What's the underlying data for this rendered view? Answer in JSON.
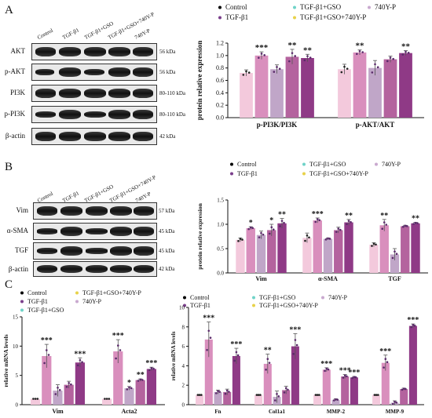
{
  "panels": {
    "A": {
      "letter": "A",
      "lanes": [
        "Control",
        "TGF-β1",
        "TGF-β1+GSO",
        "TGF-β1+GSO+740Y-P",
        "740Y-P"
      ],
      "rows": [
        {
          "name": "AKT",
          "kda": "56 kDa"
        },
        {
          "name": "p-AKT",
          "kda": "56 kDa"
        },
        {
          "name": "PI3K",
          "kda": "80-110 kDa"
        },
        {
          "name": "p-PI3K",
          "kda": "80-110 kDa"
        },
        {
          "name": "β-actin",
          "kda": "42 kDa"
        }
      ]
    },
    "B": {
      "letter": "B",
      "lanes": [
        "Control",
        "TGF-β1",
        "TGF-β1+GSO",
        "TGF-β1+GSO+740Y-P",
        "740Y-P"
      ],
      "rows": [
        {
          "name": "Vim",
          "kda": "57 kDa"
        },
        {
          "name": "α-SMA",
          "kda": "45 kDa"
        },
        {
          "name": "TGF",
          "kda": "45 kDa"
        },
        {
          "name": "β-actin",
          "kda": "42 kDa"
        }
      ]
    },
    "C": {
      "letter": "C"
    }
  },
  "colors": {
    "Control": "#f3c9dc",
    "TGF-β1": "#d98fbd",
    "TGF-β1+GSO": "#c0a6c8",
    "TGF-β1+GSO+740Y-P": "#b4639e",
    "740Y-P": "#8f3a86",
    "dot_Control": "#000000",
    "dot_TGF": "#7b3f8c",
    "dot_GSO": "#6fd3c8",
    "dot_GSO740": "#e8d24a",
    "dot_740": "#c9a9cf"
  },
  "chart_data": [
    {
      "type": "bar",
      "ylabel": "protein relative expression",
      "ylim": [
        0,
        1.2
      ],
      "yticks": [
        "0.0",
        "0.2",
        "0.4",
        "0.6",
        "0.8",
        "1.0",
        "1.2"
      ],
      "categories": [
        "p-PI3K/PI3K",
        "p-AKT/AKT"
      ],
      "legend": [
        "Control",
        "TGF-β1+GSO",
        "740Y-P",
        "TGF-β1",
        "TGF-β1+GSO+740Y-P"
      ],
      "series": [
        {
          "name": "Control",
          "values": [
            0.72,
            0.78
          ]
        },
        {
          "name": "TGF-β1",
          "values": [
            1.0,
            1.05
          ]
        },
        {
          "name": "TGF-β1+GSO",
          "values": [
            0.78,
            0.8
          ]
        },
        {
          "name": "TGF-β1+GSO+740Y-P",
          "values": [
            0.98,
            0.94
          ]
        },
        {
          "name": "740Y-P",
          "values": [
            0.96,
            1.04
          ]
        }
      ],
      "errors": [
        [
          0.05,
          0.08
        ],
        [
          0.06,
          0.04
        ],
        [
          0.07,
          0.12
        ],
        [
          0.12,
          0.05
        ],
        [
          0.06,
          0.04
        ]
      ],
      "annotations": [
        [
          "",
          ""
        ],
        [
          "***",
          "**"
        ],
        [
          "",
          ""
        ],
        [
          "**",
          ""
        ],
        [
          "**",
          "**"
        ]
      ]
    },
    {
      "type": "bar",
      "ylabel": "protein relative expression",
      "ylim": [
        0,
        1.5
      ],
      "yticks": [
        "0.0",
        "0.5",
        "1.0",
        "1.5"
      ],
      "categories": [
        "Vim",
        "α-SMA",
        "TGF"
      ],
      "legend": [
        "Control",
        "TGF-β1+GSO",
        "740Y-P",
        "TGF-β1",
        "TGF-β1+GSO+740Y-P"
      ],
      "series": [
        {
          "name": "Control",
          "values": [
            0.68,
            0.72,
            0.58
          ]
        },
        {
          "name": "TGF-β1",
          "values": [
            0.92,
            1.08,
            0.98
          ]
        },
        {
          "name": "TGF-β1+GSO",
          "values": [
            0.78,
            0.7,
            0.38
          ]
        },
        {
          "name": "TGF-β1+GSO+740Y-P",
          "values": [
            0.88,
            0.88,
            0.96
          ]
        },
        {
          "name": "740Y-P",
          "values": [
            1.02,
            1.04,
            1.02
          ]
        }
      ],
      "errors": [
        [
          0.04,
          0.1,
          0.04
        ],
        [
          0.03,
          0.05,
          0.12
        ],
        [
          0.08,
          0.02,
          0.12
        ],
        [
          0.12,
          0.06,
          0.02
        ],
        [
          0.1,
          0.06,
          0.02
        ]
      ],
      "annotations": [
        [
          "",
          "",
          ""
        ],
        [
          "*",
          "***",
          "**"
        ],
        [
          "",
          "",
          ""
        ],
        [
          "*",
          "",
          ""
        ],
        [
          "**",
          "**",
          "**"
        ]
      ]
    },
    {
      "type": "bar",
      "ylabel": "relative mRNA levels",
      "ylim": [
        0,
        15
      ],
      "yticks": [
        "0",
        "5",
        "10",
        "15"
      ],
      "categories": [
        "Vim",
        "Acta2"
      ],
      "legend": [
        "Control",
        "TGF-β1+GSO+740Y-P",
        "TGF-β1",
        "740Y-P",
        "TGF-β1+GSO"
      ],
      "series": [
        {
          "name": "Control",
          "values": [
            1.0,
            1.0
          ]
        },
        {
          "name": "TGF-β1",
          "values": [
            8.3,
            9.1
          ]
        },
        {
          "name": "TGF-β1+GSO",
          "values": [
            2.4,
            2.8
          ]
        },
        {
          "name": "TGF-β1+GSO+740Y-P",
          "values": [
            3.4,
            4.2
          ]
        },
        {
          "name": "740Y-P",
          "values": [
            7.2,
            6.1
          ]
        }
      ],
      "errors": [
        [
          0,
          0
        ],
        [
          2.0,
          2.0
        ],
        [
          1.0,
          0.3
        ],
        [
          0.6,
          0.2
        ],
        [
          0.8,
          0.3
        ]
      ],
      "annotations": [
        [
          "",
          ""
        ],
        [
          "***",
          "***"
        ],
        [
          "",
          "*"
        ],
        [
          "",
          "**"
        ],
        [
          "***",
          "***"
        ]
      ]
    },
    {
      "type": "bar",
      "ylabel": "relative mRNA levels",
      "ylim": [
        0,
        10
      ],
      "yticks": [
        "0",
        "2",
        "4",
        "6",
        "8",
        "10"
      ],
      "categories": [
        "Fn",
        "Col1a1",
        "MMP-2",
        "MMP-9"
      ],
      "legend": [
        "Control",
        "TGF-β1+GSO",
        "740Y-P",
        "TGF-β1",
        "TGF-β1+GSO+740Y-P"
      ],
      "series": [
        {
          "name": "Control",
          "values": [
            1.0,
            1.0,
            1.0,
            1.0
          ]
        },
        {
          "name": "TGF-β1",
          "values": [
            6.7,
            4.2,
            3.6,
            4.3
          ]
        },
        {
          "name": "TGF-β1+GSO",
          "values": [
            1.3,
            0.8,
            0.5,
            0.2
          ]
        },
        {
          "name": "TGF-β1+GSO+740Y-P",
          "values": [
            1.3,
            1.5,
            2.9,
            1.6
          ]
        },
        {
          "name": "740Y-P",
          "values": [
            5.0,
            6.0,
            2.8,
            8.1
          ]
        }
      ],
      "errors": [
        [
          0,
          0,
          0,
          0
        ],
        [
          1.8,
          1.0,
          0.2,
          0.8
        ],
        [
          0.2,
          0.6,
          0.1,
          0.2
        ],
        [
          0.3,
          0.4,
          0.2,
          0.1
        ],
        [
          0.8,
          1.3,
          0.1,
          0.2
        ]
      ],
      "annotations": [
        [
          "",
          "",
          "",
          ""
        ],
        [
          "***",
          "**",
          "***",
          "***"
        ],
        [
          "",
          "",
          "",
          ""
        ],
        [
          "",
          "",
          "***",
          ""
        ],
        [
          "***",
          "***",
          "***",
          "***"
        ]
      ]
    }
  ]
}
